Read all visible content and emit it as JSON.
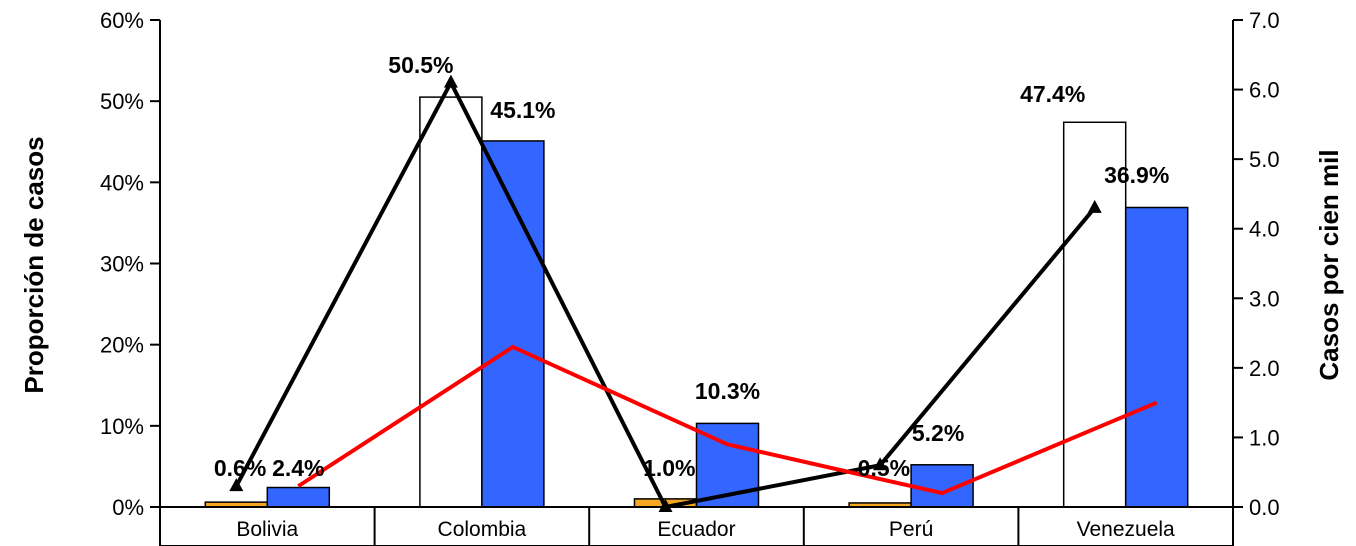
{
  "chart_data": {
    "type": "bar",
    "categories": [
      "Bolivia",
      "Colombia",
      "Ecuador",
      "Perú",
      "Venezuela"
    ],
    "ylabel": "Proporción de casos",
    "y2label": "Casos por cien mil",
    "ylim": [
      0,
      60
    ],
    "y2lim": [
      0,
      7
    ],
    "y_ticks": [
      "0%",
      "10%",
      "20%",
      "30%",
      "40%",
      "50%",
      "60%"
    ],
    "y2_ticks": [
      "0.0",
      "1.0",
      "2.0",
      "3.0",
      "4.0",
      "5.0",
      "6.0",
      "7.0"
    ],
    "series": [
      {
        "kind": "bar",
        "color": "#ffffff",
        "colors": [
          "#f5a623",
          "#ffffff",
          "#f5a623",
          "#f5a623",
          "#ffffff"
        ],
        "values": [
          0.6,
          50.5,
          1.0,
          0.5,
          47.4
        ],
        "labels": [
          "0.6%",
          "50.5%",
          "1.0%",
          "0.5%",
          "47.4%"
        ]
      },
      {
        "kind": "bar",
        "color": "#3366ff",
        "values": [
          2.4,
          45.1,
          10.3,
          5.2,
          36.9
        ],
        "labels": [
          "2.4%",
          "45.1%",
          "10.3%",
          "5.2%",
          "36.9%"
        ]
      },
      {
        "kind": "line",
        "axis": "y2",
        "color": "#000000",
        "marker": "triangle",
        "values": [
          0.3,
          6.1,
          0.0,
          0.6,
          4.3
        ]
      },
      {
        "kind": "line",
        "axis": "y2",
        "color": "#ff0000",
        "values": [
          0.3,
          2.3,
          0.9,
          0.2,
          1.5
        ]
      }
    ]
  }
}
